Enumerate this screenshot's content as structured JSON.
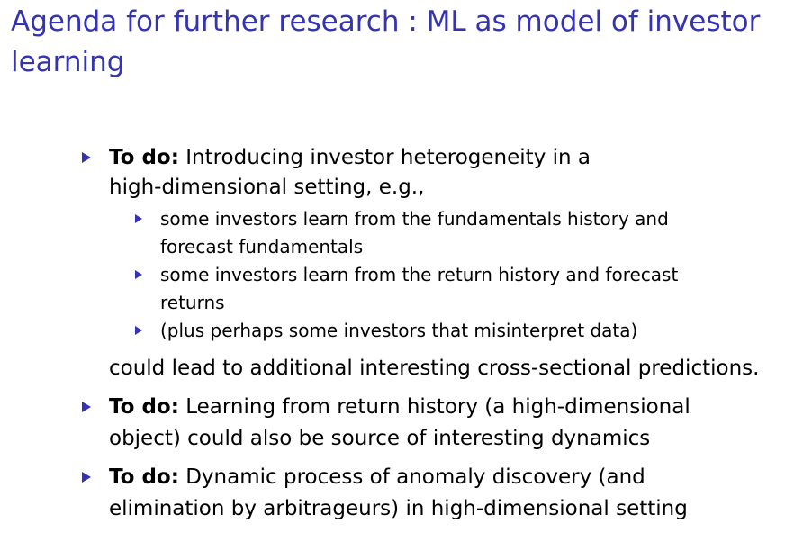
{
  "title_line1": "Agenda for further research : ML as model of investor",
  "title_line2": "learning",
  "accent_color": "#3333b3",
  "items": [
    {
      "label": "To do:",
      "line1": "Introducing investor heterogeneity in a",
      "line2": "high-dimensional setting, e.g.,",
      "subitems": [
        {
          "line1": "some investors learn from the fundamentals history and",
          "line2": "forecast fundamentals"
        },
        {
          "line1": "some investors learn from the return history and forecast",
          "line2": "returns"
        },
        {
          "line1": "(plus perhaps some investors that misinterpret data)"
        }
      ],
      "continuation": "could lead to additional interesting cross-sectional predictions."
    },
    {
      "label": "To do:",
      "line1": "Learning from return history (a high-dimensional",
      "line2": "object) could also be source of interesting dynamics"
    },
    {
      "label": "To do:",
      "line1": "Dynamic process of anomaly discovery (and",
      "line2": "elimination by arbitrageurs) in high-dimensional setting"
    }
  ]
}
